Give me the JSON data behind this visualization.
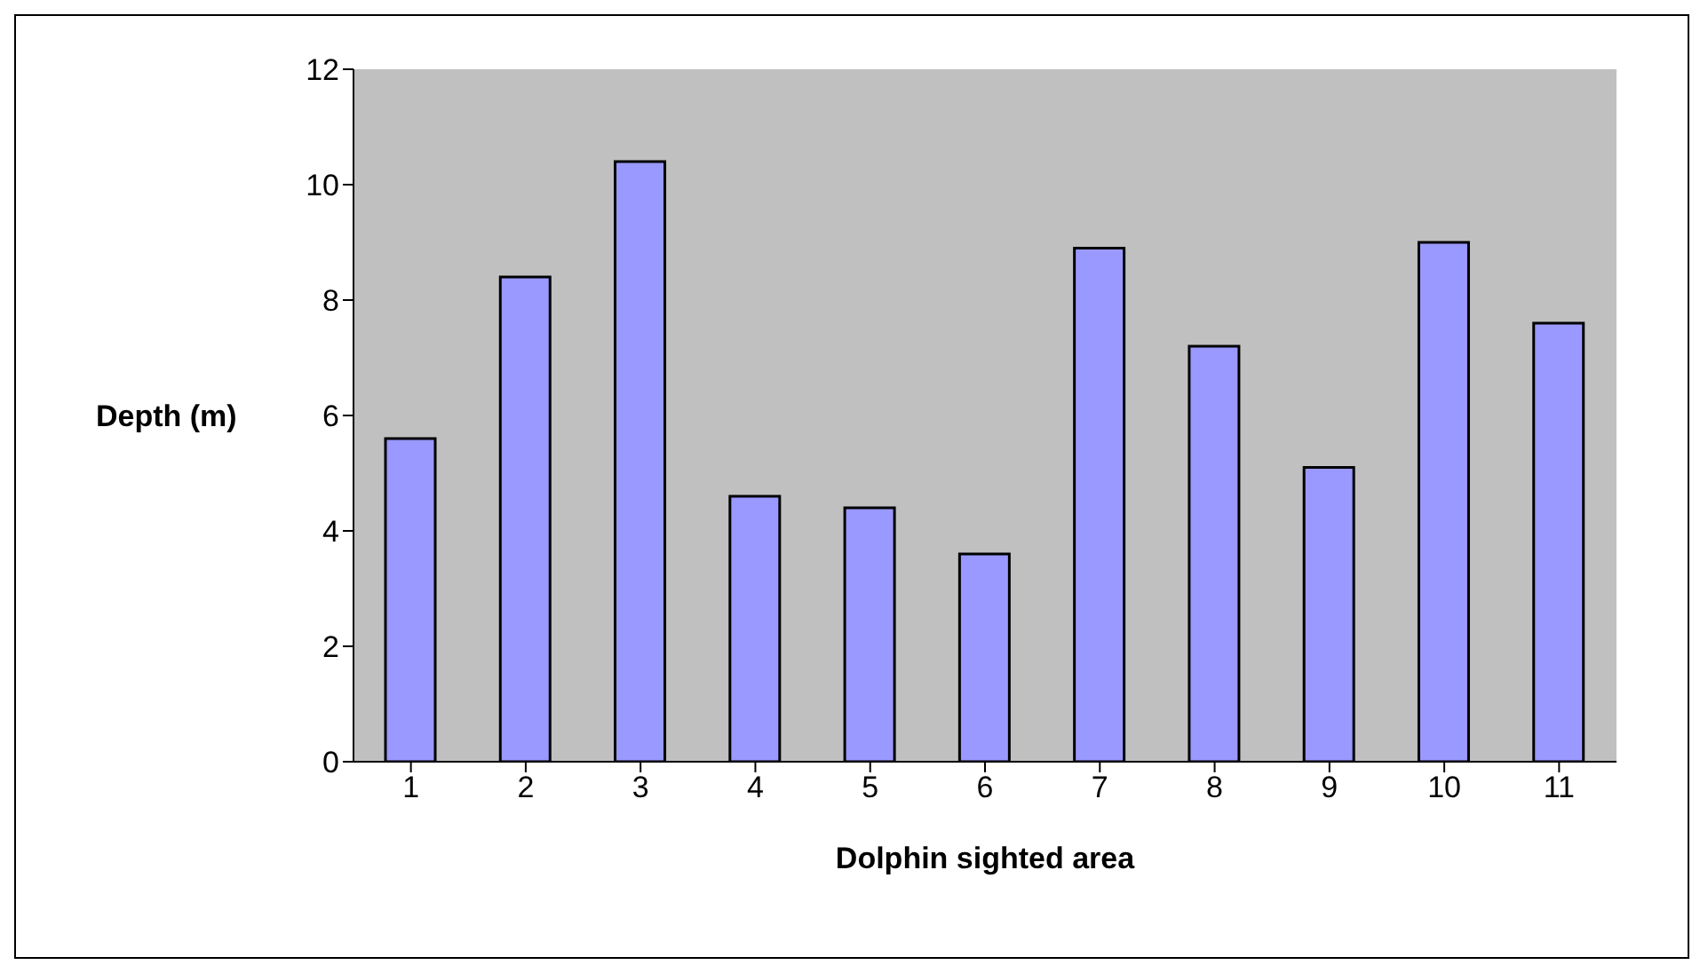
{
  "chart_data": {
    "type": "bar",
    "xlabel": "Dolphin sighted area",
    "ylabel": "Depth (m)",
    "categories": [
      "1",
      "2",
      "3",
      "4",
      "5",
      "6",
      "7",
      "8",
      "9",
      "10",
      "11"
    ],
    "values": [
      5.6,
      8.4,
      10.4,
      4.6,
      4.4,
      3.6,
      8.9,
      7.2,
      5.1,
      9.0,
      7.6
    ],
    "color": "#9999ff",
    "ylim": [
      0,
      12
    ],
    "yticks": [
      0,
      2,
      4,
      6,
      8,
      10,
      12
    ],
    "grid": false
  }
}
